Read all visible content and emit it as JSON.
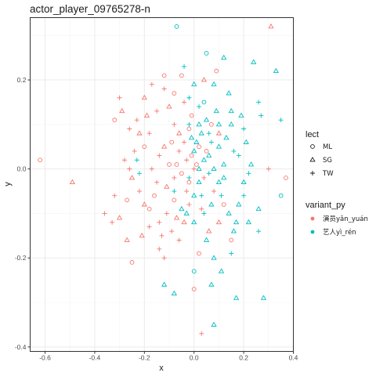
{
  "chart_data": {
    "type": "scatter",
    "title": "actor_player_09765278-n",
    "xlabel": "x",
    "ylabel": "y",
    "xlim": [
      -0.66,
      0.4
    ],
    "ylim": [
      -0.41,
      0.34
    ],
    "xticks": [
      -0.6,
      -0.4,
      -0.2,
      0.0,
      0.2,
      0.4
    ],
    "xtick_labels": [
      "-0.6",
      "-0.4",
      "-0.2",
      "0.0",
      "0.2",
      "0.4"
    ],
    "yticks": [
      -0.4,
      -0.2,
      0.0,
      0.2
    ],
    "ytick_labels": [
      "-0.4",
      "-0.2",
      "0.0",
      "0.2"
    ],
    "grid": true,
    "legend_position": "right",
    "legends": [
      {
        "title": "lect",
        "type": "shape",
        "items": [
          {
            "label": "ML",
            "shape": "circle"
          },
          {
            "label": "SG",
            "shape": "triangle"
          },
          {
            "label": "TW",
            "shape": "plus"
          }
        ]
      },
      {
        "title": "variant_py",
        "type": "color",
        "items": [
          {
            "label": "演员yǎn_yuán",
            "color": "#F8766D"
          },
          {
            "label": "艺人yì_rén",
            "color": "#00BFC4"
          }
        ]
      }
    ],
    "series": [
      {
        "name": "演员yǎn_yuán",
        "color": "#F8766D",
        "points": [
          {
            "x": 0.31,
            "y": 0.32,
            "lect": "SG"
          },
          {
            "x": -0.62,
            "y": 0.02,
            "lect": "ML"
          },
          {
            "x": -0.49,
            "y": -0.03,
            "lect": "SG"
          },
          {
            "x": 0.37,
            "y": -0.02,
            "lect": "ML"
          },
          {
            "x": 0.3,
            "y": 0.0,
            "lect": "TW"
          },
          {
            "x": -0.32,
            "y": 0.11,
            "lect": "ML"
          },
          {
            "x": -0.3,
            "y": 0.16,
            "lect": "TW"
          },
          {
            "x": -0.29,
            "y": 0.13,
            "lect": "SG"
          },
          {
            "x": -0.26,
            "y": 0.09,
            "lect": "TW"
          },
          {
            "x": -0.23,
            "y": 0.11,
            "lect": "TW"
          },
          {
            "x": -0.2,
            "y": 0.16,
            "lect": "SG"
          },
          {
            "x": -0.17,
            "y": 0.19,
            "lect": "TW"
          },
          {
            "x": -0.12,
            "y": 0.21,
            "lect": "ML"
          },
          {
            "x": -0.05,
            "y": 0.21,
            "lect": "ML"
          },
          {
            "x": 0.04,
            "y": 0.2,
            "lect": "SG"
          },
          {
            "x": 0.09,
            "y": 0.22,
            "lect": "ML"
          },
          {
            "x": -0.08,
            "y": 0.17,
            "lect": "ML"
          },
          {
            "x": -0.12,
            "y": 0.18,
            "lect": "TW"
          },
          {
            "x": -0.1,
            "y": 0.14,
            "lect": "SG"
          },
          {
            "x": -0.15,
            "y": 0.13,
            "lect": "TW"
          },
          {
            "x": -0.19,
            "y": 0.12,
            "lect": "SG"
          },
          {
            "x": -0.22,
            "y": 0.08,
            "lect": "SG"
          },
          {
            "x": -0.24,
            "y": 0.04,
            "lect": "TW"
          },
          {
            "x": -0.28,
            "y": 0.02,
            "lect": "TW"
          },
          {
            "x": -0.25,
            "y": -0.02,
            "lect": "SG"
          },
          {
            "x": -0.22,
            "y": -0.05,
            "lect": "TW"
          },
          {
            "x": -0.27,
            "y": -0.07,
            "lect": "ML"
          },
          {
            "x": -0.32,
            "y": -0.06,
            "lect": "TW"
          },
          {
            "x": -0.36,
            "y": -0.1,
            "lect": "TW"
          },
          {
            "x": -0.33,
            "y": -0.12,
            "lect": "TW"
          },
          {
            "x": -0.3,
            "y": -0.11,
            "lect": "SG"
          },
          {
            "x": -0.27,
            "y": -0.16,
            "lect": "SG"
          },
          {
            "x": -0.25,
            "y": -0.21,
            "lect": "ML"
          },
          {
            "x": -0.21,
            "y": -0.15,
            "lect": "SG"
          },
          {
            "x": -0.18,
            "y": -0.13,
            "lect": "TW"
          },
          {
            "x": -0.18,
            "y": -0.09,
            "lect": "ML"
          },
          {
            "x": -0.14,
            "y": -0.12,
            "lect": "TW"
          },
          {
            "x": -0.13,
            "y": -0.15,
            "lect": "TW"
          },
          {
            "x": -0.14,
            "y": -0.18,
            "lect": "TW"
          },
          {
            "x": -0.12,
            "y": -0.2,
            "lect": "TW"
          },
          {
            "x": -0.09,
            "y": -0.14,
            "lect": "TW"
          },
          {
            "x": -0.06,
            "y": -0.16,
            "lect": "TW"
          },
          {
            "x": -0.04,
            "y": -0.12,
            "lect": "SG"
          },
          {
            "x": 0.0,
            "y": -0.27,
            "lect": "ML"
          },
          {
            "x": 0.03,
            "y": -0.37,
            "lect": "TW"
          },
          {
            "x": 0.02,
            "y": -0.19,
            "lect": "ML"
          },
          {
            "x": 0.06,
            "y": -0.14,
            "lect": "SG"
          },
          {
            "x": 0.03,
            "y": -0.09,
            "lect": "TW"
          },
          {
            "x": -0.02,
            "y": -0.08,
            "lect": "TW"
          },
          {
            "x": -0.08,
            "y": -0.07,
            "lect": "ML"
          },
          {
            "x": -0.11,
            "y": -0.04,
            "lect": "SG"
          },
          {
            "x": -0.15,
            "y": -0.03,
            "lect": "TW"
          },
          {
            "x": -0.17,
            "y": 0.0,
            "lect": "TW"
          },
          {
            "x": -0.14,
            "y": 0.03,
            "lect": "TW"
          },
          {
            "x": -0.12,
            "y": 0.05,
            "lect": "SG"
          },
          {
            "x": -0.09,
            "y": 0.06,
            "lect": "ML"
          },
          {
            "x": -0.06,
            "y": 0.04,
            "lect": "TW"
          },
          {
            "x": -0.07,
            "y": 0.01,
            "lect": "ML"
          },
          {
            "x": -0.05,
            "y": -0.01,
            "lect": "ML"
          },
          {
            "x": -0.03,
            "y": 0.02,
            "lect": "TW"
          },
          {
            "x": -0.02,
            "y": -0.03,
            "lect": "ML"
          },
          {
            "x": 0.0,
            "y": 0.0,
            "lect": "TW"
          },
          {
            "x": -0.01,
            "y": 0.03,
            "lect": "ML"
          },
          {
            "x": 0.01,
            "y": 0.01,
            "lect": "ML"
          },
          {
            "x": -0.04,
            "y": 0.06,
            "lect": "TW"
          },
          {
            "x": 0.02,
            "y": 0.05,
            "lect": "ML"
          },
          {
            "x": 0.04,
            "y": -0.02,
            "lect": "TW"
          },
          {
            "x": -0.03,
            "y": -0.05,
            "lect": "TW"
          },
          {
            "x": -0.08,
            "y": -0.02,
            "lect": "TW"
          },
          {
            "x": -0.1,
            "y": 0.01,
            "lect": "ML"
          },
          {
            "x": -0.06,
            "y": 0.08,
            "lect": "SG"
          },
          {
            "x": -0.02,
            "y": 0.09,
            "lect": "ML"
          },
          {
            "x": -0.01,
            "y": 0.12,
            "lect": "ML"
          },
          {
            "x": -0.04,
            "y": 0.15,
            "lect": "TW"
          },
          {
            "x": 0.07,
            "y": 0.1,
            "lect": "ML"
          },
          {
            "x": 0.1,
            "y": 0.08,
            "lect": "SG"
          },
          {
            "x": 0.05,
            "y": 0.04,
            "lect": "ML"
          },
          {
            "x": 0.08,
            "y": -0.05,
            "lect": "TW"
          },
          {
            "x": 0.12,
            "y": -0.08,
            "lect": "ML"
          },
          {
            "x": 0.1,
            "y": -0.12,
            "lect": "SG"
          },
          {
            "x": 0.15,
            "y": -0.16,
            "lect": "ML"
          },
          {
            "x": -0.26,
            "y": 0.0,
            "lect": "TW"
          },
          {
            "x": -0.2,
            "y": -0.08,
            "lect": "SG"
          },
          {
            "x": -0.16,
            "y": -0.06,
            "lect": "ML"
          },
          {
            "x": -0.11,
            "y": -0.1,
            "lect": "TW"
          },
          {
            "x": -0.07,
            "y": -0.11,
            "lect": "SG"
          },
          {
            "x": -0.2,
            "y": 0.05,
            "lect": "ML"
          },
          {
            "x": -0.18,
            "y": 0.08,
            "lect": "TW"
          },
          {
            "x": -0.08,
            "y": 0.1,
            "lect": "TW"
          }
        ]
      },
      {
        "name": "艺人yì_rén",
        "color": "#00BFC4",
        "points": [
          {
            "x": -0.07,
            "y": 0.32,
            "lect": "ML"
          },
          {
            "x": 0.05,
            "y": 0.26,
            "lect": "ML"
          },
          {
            "x": 0.12,
            "y": 0.25,
            "lect": "SG"
          },
          {
            "x": 0.24,
            "y": 0.24,
            "lect": "SG"
          },
          {
            "x": 0.33,
            "y": 0.22,
            "lect": "SG"
          },
          {
            "x": -0.04,
            "y": 0.23,
            "lect": "TW"
          },
          {
            "x": 0.08,
            "y": 0.19,
            "lect": "SG"
          },
          {
            "x": 0.14,
            "y": 0.17,
            "lect": "SG"
          },
          {
            "x": 0.26,
            "y": 0.15,
            "lect": "TW"
          },
          {
            "x": 0.27,
            "y": 0.12,
            "lect": "TW"
          },
          {
            "x": 0.35,
            "y": 0.11,
            "lect": "TW"
          },
          {
            "x": 0.19,
            "y": 0.12,
            "lect": "SG"
          },
          {
            "x": 0.15,
            "y": 0.1,
            "lect": "SG"
          },
          {
            "x": 0.2,
            "y": 0.09,
            "lect": "TW"
          },
          {
            "x": 0.21,
            "y": 0.06,
            "lect": "SG"
          },
          {
            "x": 0.18,
            "y": 0.03,
            "lect": "TW"
          },
          {
            "x": 0.23,
            "y": 0.01,
            "lect": "SG"
          },
          {
            "x": 0.2,
            "y": -0.03,
            "lect": "SG"
          },
          {
            "x": 0.2,
            "y": -0.06,
            "lect": "TW"
          },
          {
            "x": 0.35,
            "y": -0.06,
            "lect": "ML"
          },
          {
            "x": 0.26,
            "y": -0.09,
            "lect": "SG"
          },
          {
            "x": 0.22,
            "y": -0.12,
            "lect": "SG"
          },
          {
            "x": 0.26,
            "y": -0.14,
            "lect": "TW"
          },
          {
            "x": 0.16,
            "y": -0.14,
            "lect": "SG"
          },
          {
            "x": 0.15,
            "y": -0.19,
            "lect": "TW"
          },
          {
            "x": 0.08,
            "y": -0.2,
            "lect": "SG"
          },
          {
            "x": 0.11,
            "y": -0.23,
            "lect": "SG"
          },
          {
            "x": 0.07,
            "y": -0.26,
            "lect": "SG"
          },
          {
            "x": 0.17,
            "y": -0.29,
            "lect": "SG"
          },
          {
            "x": 0.28,
            "y": -0.29,
            "lect": "SG"
          },
          {
            "x": -0.12,
            "y": -0.26,
            "lect": "SG"
          },
          {
            "x": -0.08,
            "y": -0.28,
            "lect": "SG"
          },
          {
            "x": 0.0,
            "y": -0.23,
            "lect": "ML"
          },
          {
            "x": 0.08,
            "y": -0.35,
            "lect": "SG"
          },
          {
            "x": -0.23,
            "y": 0.02,
            "lect": "TW"
          },
          {
            "x": -0.22,
            "y": -0.01,
            "lect": "TW"
          },
          {
            "x": -0.03,
            "y": -0.1,
            "lect": "SG"
          },
          {
            "x": 0.0,
            "y": -0.12,
            "lect": "SG"
          },
          {
            "x": 0.04,
            "y": -0.1,
            "lect": "TW"
          },
          {
            "x": 0.07,
            "y": -0.08,
            "lect": "SG"
          },
          {
            "x": 0.1,
            "y": -0.03,
            "lect": "SG"
          },
          {
            "x": 0.12,
            "y": 0.01,
            "lect": "SG"
          },
          {
            "x": 0.1,
            "y": 0.05,
            "lect": "SG"
          },
          {
            "x": 0.07,
            "y": 0.06,
            "lect": "TW"
          },
          {
            "x": 0.03,
            "y": 0.08,
            "lect": "SG"
          },
          {
            "x": 0.05,
            "y": 0.11,
            "lect": "SG"
          },
          {
            "x": 0.02,
            "y": 0.14,
            "lect": "TW"
          },
          {
            "x": -0.02,
            "y": 0.16,
            "lect": "TW"
          },
          {
            "x": 0.0,
            "y": 0.19,
            "lect": "SG"
          },
          {
            "x": 0.04,
            "y": 0.15,
            "lect": "ML"
          },
          {
            "x": 0.01,
            "y": 0.06,
            "lect": "SG"
          },
          {
            "x": 0.04,
            "y": 0.02,
            "lect": "SG"
          },
          {
            "x": 0.06,
            "y": -0.01,
            "lect": "TW"
          },
          {
            "x": 0.02,
            "y": -0.03,
            "lect": "SG"
          },
          {
            "x": 0.0,
            "y": -0.06,
            "lect": "SG"
          },
          {
            "x": -0.02,
            "y": -0.02,
            "lect": "TW"
          },
          {
            "x": 0.08,
            "y": 0.0,
            "lect": "SG"
          },
          {
            "x": 0.11,
            "y": -0.06,
            "lect": "TW"
          },
          {
            "x": 0.13,
            "y": 0.07,
            "lect": "SG"
          },
          {
            "x": 0.09,
            "y": 0.13,
            "lect": "SG"
          },
          {
            "x": 0.14,
            "y": -0.1,
            "lect": "SG"
          },
          {
            "x": 0.18,
            "y": -0.08,
            "lect": "SG"
          },
          {
            "x": 0.05,
            "y": -0.16,
            "lect": "SG"
          },
          {
            "x": -0.02,
            "y": 0.1,
            "lect": "TW"
          },
          {
            "x": 0.02,
            "y": 0.1,
            "lect": "SG"
          },
          {
            "x": 0.16,
            "y": 0.04,
            "lect": "TW"
          },
          {
            "x": 0.12,
            "y": -0.02,
            "lect": "SG"
          },
          {
            "x": 0.06,
            "y": 0.03,
            "lect": "SG"
          },
          {
            "x": 0.03,
            "y": -0.06,
            "lect": "TW"
          },
          {
            "x": 0.1,
            "y": 0.1,
            "lect": "SG"
          },
          {
            "x": 0.06,
            "y": 0.08,
            "lect": "TW"
          },
          {
            "x": -0.05,
            "y": -0.09,
            "lect": "SG"
          },
          {
            "x": -0.08,
            "y": -0.05,
            "lect": "TW"
          },
          {
            "x": 0.0,
            "y": 0.04,
            "lect": "SG"
          },
          {
            "x": 0.02,
            "y": 0.0,
            "lect": "SG"
          },
          {
            "x": -0.01,
            "y": 0.07,
            "lect": "SG"
          },
          {
            "x": 0.15,
            "y": 0.13,
            "lect": "SG"
          },
          {
            "x": 0.22,
            "y": -0.01,
            "lect": "TW"
          },
          {
            "x": 0.17,
            "y": -0.12,
            "lect": "SG"
          }
        ]
      }
    ]
  }
}
